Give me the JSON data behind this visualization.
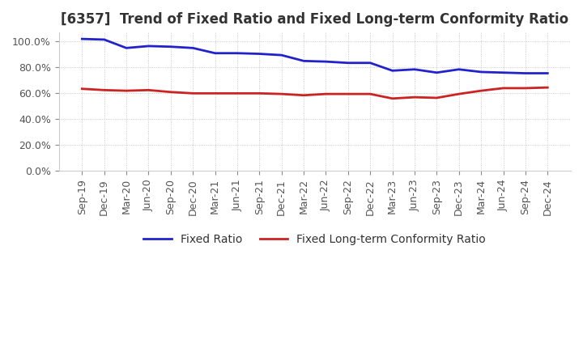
{
  "title": "[6357]  Trend of Fixed Ratio and Fixed Long-term Conformity Ratio",
  "labels": [
    "Sep-19",
    "Dec-19",
    "Mar-20",
    "Jun-20",
    "Sep-20",
    "Dec-20",
    "Mar-21",
    "Jun-21",
    "Sep-21",
    "Dec-21",
    "Mar-22",
    "Jun-22",
    "Sep-22",
    "Dec-22",
    "Mar-23",
    "Jun-23",
    "Sep-23",
    "Dec-23",
    "Mar-24",
    "Jun-24",
    "Sep-24",
    "Dec-24"
  ],
  "fixed_ratio": [
    102.0,
    101.5,
    95.0,
    96.5,
    96.0,
    95.0,
    91.0,
    91.0,
    90.5,
    89.5,
    85.0,
    84.5,
    83.5,
    83.5,
    77.5,
    78.5,
    76.0,
    78.5,
    76.5,
    76.0,
    75.5,
    75.5
  ],
  "fixed_lt_ratio": [
    63.5,
    62.5,
    62.0,
    62.5,
    61.0,
    60.0,
    60.0,
    60.0,
    60.0,
    59.5,
    58.5,
    59.5,
    59.5,
    59.5,
    56.0,
    57.0,
    56.5,
    59.5,
    62.0,
    64.0,
    64.0,
    64.5
  ],
  "fixed_ratio_color": "#2222cc",
  "fixed_lt_ratio_color": "#cc2222",
  "ylim": [
    0,
    107
  ],
  "yticks": [
    0,
    20,
    40,
    60,
    80,
    100
  ],
  "background_color": "#ffffff",
  "plot_bg_color": "#ffffff",
  "grid_color": "#bbbbbb",
  "title_fontsize": 12,
  "title_color": "#333333",
  "legend_fontsize": 10,
  "tick_fontsize": 9,
  "linewidth": 2.0
}
